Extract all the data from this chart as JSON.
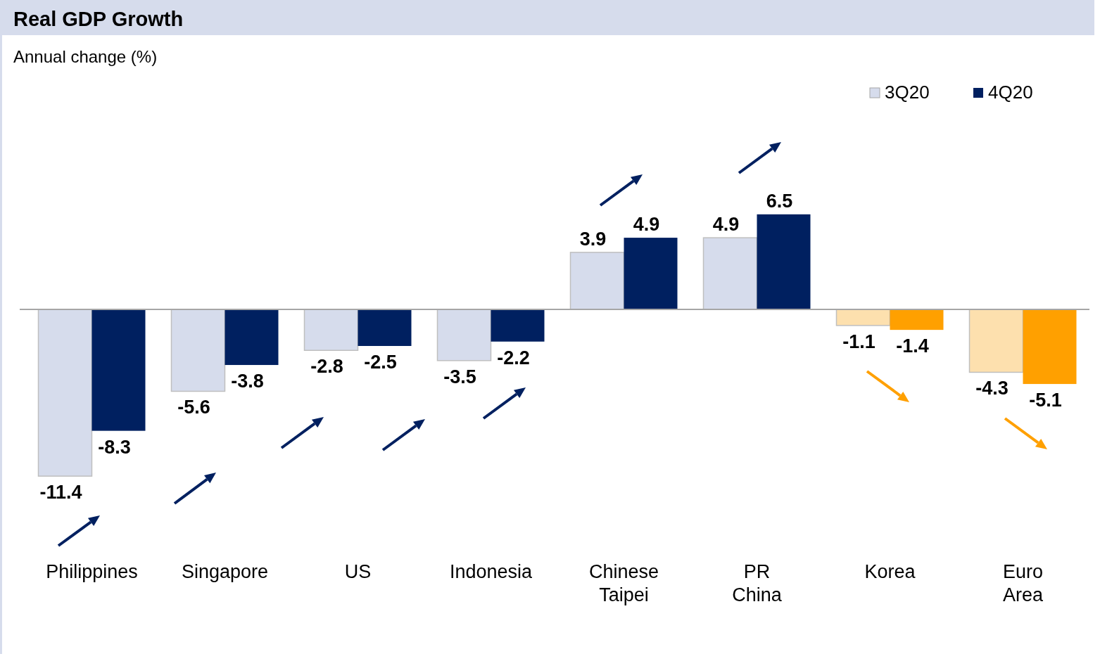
{
  "chart_data": {
    "type": "bar",
    "title": "Real GDP Growth",
    "subtitle": "Annual change (%)",
    "categories": [
      "Philippines",
      "Singapore",
      "US",
      "Indonesia",
      "Chinese Taipei",
      "PR China",
      "Korea",
      "Euro Area"
    ],
    "series": [
      {
        "name": "3Q20",
        "color": "#d6dcec",
        "colors": [
          "#d6dcec",
          "#d6dcec",
          "#d6dcec",
          "#d6dcec",
          "#d6dcec",
          "#d6dcec",
          "#fde0ae",
          "#fde0ae"
        ],
        "values": [
          -11.4,
          -5.6,
          -2.8,
          -3.5,
          3.9,
          4.9,
          -1.1,
          -4.3
        ]
      },
      {
        "name": "4Q20",
        "color": "#002060",
        "colors": [
          "#002060",
          "#002060",
          "#002060",
          "#002060",
          "#002060",
          "#002060",
          "#ffa000",
          "#ffa000"
        ],
        "values": [
          -8.3,
          -3.8,
          -2.5,
          -2.2,
          4.9,
          6.5,
          -1.4,
          -5.1
        ]
      }
    ],
    "data_labels": true,
    "legend": "top right"
  }
}
